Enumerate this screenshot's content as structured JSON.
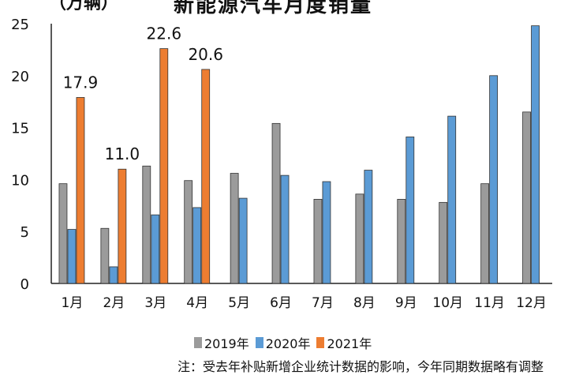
{
  "header": {
    "unit": "（万辆）",
    "title": "新能源汽车月度销量"
  },
  "chart_data": {
    "type": "bar",
    "title": "新能源汽车月度销量",
    "ylabel": "（万辆）",
    "ylim": [
      0,
      25
    ],
    "yticks": [
      "0",
      "5",
      "10",
      "15",
      "20",
      "25"
    ],
    "categories": [
      "1月",
      "2月",
      "3月",
      "4月",
      "5月",
      "6月",
      "7月",
      "8月",
      "9月",
      "10月",
      "11月",
      "12月"
    ],
    "series": [
      {
        "name": "2019年",
        "color": "#9b9b9b",
        "values": [
          9.6,
          5.3,
          11.3,
          9.9,
          10.6,
          15.4,
          8.1,
          8.6,
          8.1,
          7.8,
          9.6,
          16.5
        ]
      },
      {
        "name": "2020年",
        "color": "#5b9bd5",
        "values": [
          5.2,
          1.6,
          6.6,
          7.3,
          8.2,
          10.4,
          9.8,
          10.9,
          14.1,
          16.1,
          20.0,
          24.8
        ]
      },
      {
        "name": "2021年",
        "color": "#ed7d31",
        "values": [
          17.9,
          11.0,
          22.6,
          20.6,
          null,
          null,
          null,
          null,
          null,
          null,
          null,
          null
        ]
      }
    ],
    "data_labels": [
      "17.9",
      "11.0",
      "22.6",
      "20.6"
    ],
    "legend_position": "bottom",
    "grid": false
  },
  "footer": {
    "note": "注：受去年补贴新增企业统计数据的影响，今年同期数据略有调整"
  }
}
